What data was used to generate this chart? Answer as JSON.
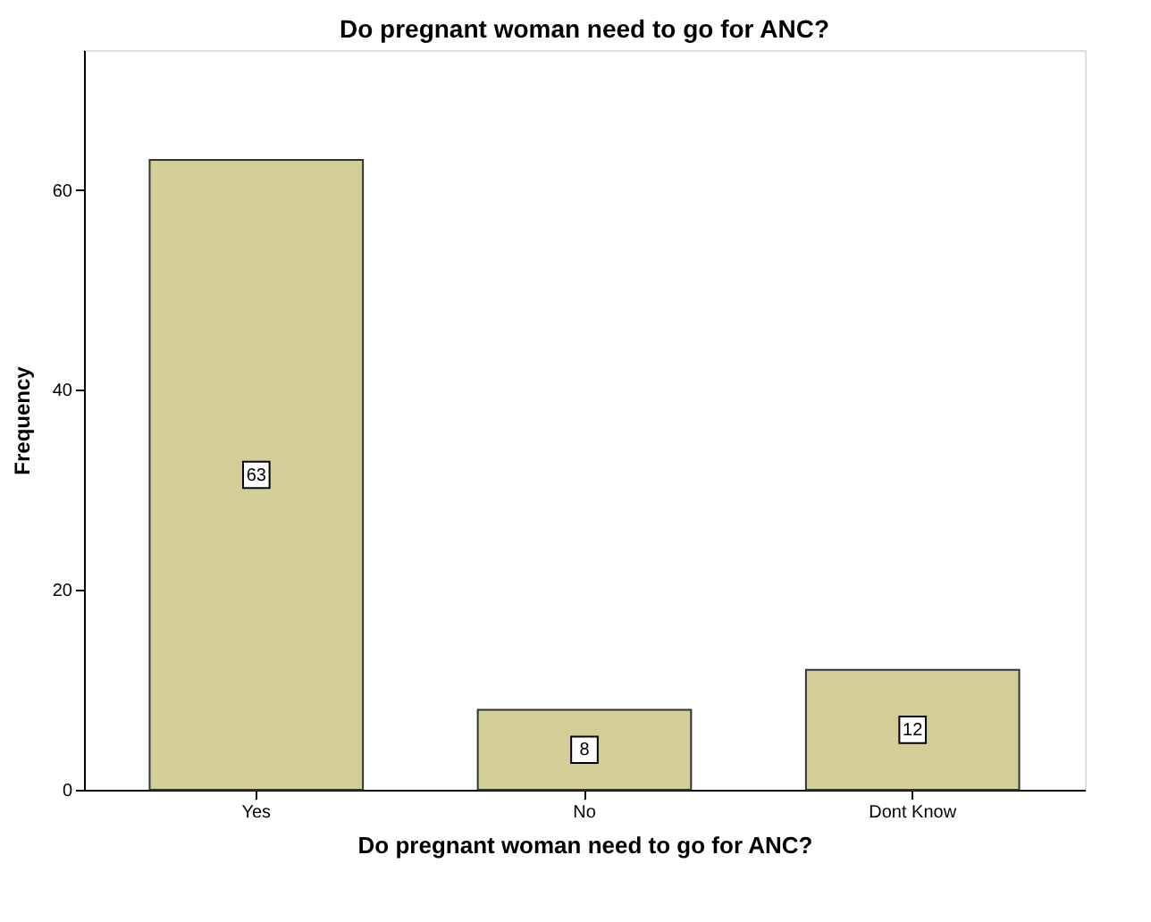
{
  "chart_data": {
    "type": "bar",
    "title": "Do pregnant woman need to go for ANC?",
    "xlabel": "Do pregnant woman need to go for ANC?",
    "ylabel": "Frequency",
    "categories": [
      "Yes",
      "No",
      "Dont Know"
    ],
    "values": [
      63,
      8,
      12
    ],
    "color": "#d3ce97",
    "ylim": [
      0,
      74
    ],
    "yticks": [
      0,
      20,
      40,
      60
    ],
    "grid": false,
    "data_labels": true
  }
}
